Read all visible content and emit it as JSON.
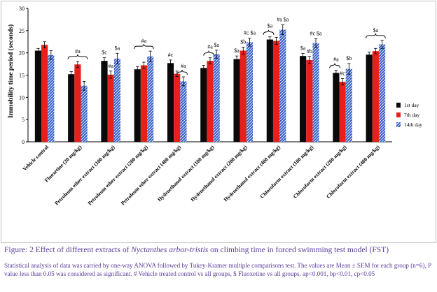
{
  "chart_data": {
    "type": "bar",
    "title": "",
    "ylabel": "Immobility time period (seconds)",
    "xlabel": "",
    "ylim": [
      0,
      30
    ],
    "yticks": [
      0,
      5,
      10,
      15,
      20,
      25,
      30
    ],
    "categories": [
      "Vehicle control",
      "Fluoxetine (20 mg/kg)",
      "Petroleum ether extract (100 mg/kg)",
      "Petroleum ether extract (200 mg/kg)",
      "Petroleum ether extract (400 mg/kg)",
      "Hydroethanol extract (100 mg/kg)",
      "Hydroethanol extract (200 mg/kg)",
      "Hydroethanol extract (400 mg/kg)",
      "Chloroform extract (100 mg/kg)",
      "Chloroform extract (200 mg/kg)",
      "Chloroform extract (400 mg/kg)"
    ],
    "series": [
      {
        "name": "1st day",
        "color": "#0a0a0a",
        "values": [
          20.5,
          15.2,
          18.2,
          16.3,
          17.7,
          16.6,
          18.6,
          23.0,
          19.3,
          15.5,
          19.6
        ],
        "errors": [
          0.5,
          0.6,
          0.7,
          0.6,
          0.7,
          0.6,
          0.7,
          0.6,
          0.6,
          0.6,
          0.6
        ]
      },
      {
        "name": "7th day",
        "color": "#e8201b",
        "values": [
          21.8,
          17.4,
          15.1,
          17.2,
          15.3,
          18.2,
          20.5,
          22.7,
          18.4,
          13.5,
          20.4
        ],
        "errors": [
          0.7,
          0.7,
          0.8,
          0.7,
          0.6,
          0.7,
          0.8,
          0.8,
          0.8,
          0.7,
          0.6
        ]
      },
      {
        "name": "14th day",
        "color": "#3a63c8",
        "values": [
          19.5,
          12.6,
          18.7,
          19.2,
          13.6,
          19.7,
          22.4,
          25.2,
          22.2,
          16.4,
          21.9
        ],
        "errors": [
          1.0,
          1.0,
          1.2,
          1.2,
          1.0,
          0.9,
          0.9,
          1.1,
          1.0,
          1.2,
          0.9
        ]
      }
    ],
    "annotations": [
      {
        "group": 1,
        "text": "#a",
        "bracket": true
      },
      {
        "group": 2,
        "series": 0,
        "text": "$c"
      },
      {
        "group": 2,
        "series": 1,
        "text": "#a"
      },
      {
        "group": 2,
        "series": 2,
        "text": "$a"
      },
      {
        "group": 3,
        "text": "#a",
        "bracket": true
      },
      {
        "group": 4,
        "series": 0,
        "text": "#c"
      },
      {
        "group": 4,
        "series": 2,
        "text": "#a",
        "halfbracket": true
      },
      {
        "group": 5,
        "series": 1,
        "text": "#a",
        "halfbracket": true
      },
      {
        "group": 5,
        "series": 2,
        "text": "$a"
      },
      {
        "group": 6,
        "series": 0,
        "text": "$a"
      },
      {
        "group": 6,
        "series": 1,
        "text": "$b"
      },
      {
        "group": 6,
        "series": 2,
        "text": "#c $a"
      },
      {
        "group": 7,
        "series": 0,
        "text": "$a",
        "halfbracket": true
      },
      {
        "group": 7,
        "series": 2,
        "text": "#a $a"
      },
      {
        "group": 8,
        "series": 0,
        "text": "$a"
      },
      {
        "group": 8,
        "series": 1,
        "text": "#b"
      },
      {
        "group": 8,
        "series": 2,
        "text": "#c $a"
      },
      {
        "group": 9,
        "series": 0,
        "text": "#a",
        "halfbracket": true
      },
      {
        "group": 9,
        "series": 1,
        "text": "#c"
      },
      {
        "group": 9,
        "series": 2,
        "text": "$b"
      },
      {
        "group": 10,
        "text": "$a",
        "bracket": true
      }
    ],
    "legend_position": "right"
  },
  "caption": {
    "prefix": "Figure: 2 Effect of different extracts of ",
    "species": "Nyctanthes arbor-tristis",
    "suffix": " on climbing time in forced swimming test model (FST)"
  },
  "stats_note": "Statistical analysis of data was carried by one-way ANOVA followed by Tukey-Kramer multiple comparisons test. The values are Mean ± SEM for each group (n=6), P value less than 0.05 was considered as significant. # Vehicle treated control vs all groups, $ Fluoxetine vs all groups. ap<0.001, bp<0.01, cp<0.05"
}
